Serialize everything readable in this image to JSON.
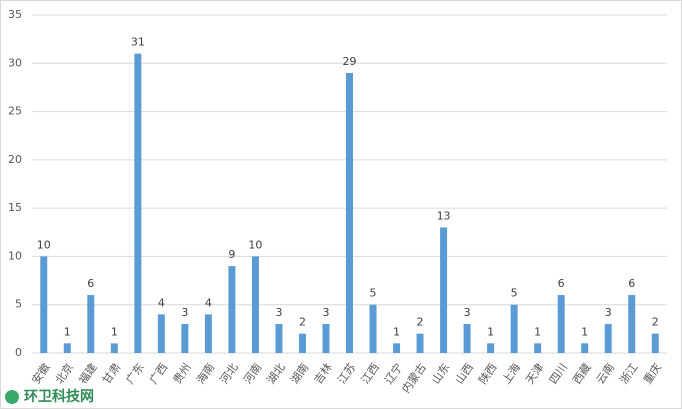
{
  "chart_data": {
    "type": "bar",
    "categories": [
      "安徽",
      "北京",
      "福建",
      "甘肃",
      "广东",
      "广西",
      "贵州",
      "海南",
      "河北",
      "河南",
      "湖北",
      "湖南",
      "吉林",
      "江苏",
      "江西",
      "辽宁",
      "内蒙古",
      "山东",
      "山西",
      "陕西",
      "上海",
      "天津",
      "四川",
      "西藏",
      "云南",
      "浙江",
      "重庆"
    ],
    "values": [
      10,
      1,
      6,
      1,
      31,
      4,
      3,
      4,
      9,
      10,
      3,
      2,
      3,
      29,
      5,
      1,
      2,
      13,
      3,
      1,
      5,
      1,
      6,
      1,
      3,
      6,
      2
    ],
    "color": "#5b9bd5",
    "ylim": [
      0,
      35
    ],
    "yticks": [
      0,
      5,
      10,
      15,
      20,
      25,
      30,
      35
    ],
    "grid": true,
    "watermark": "环卫科技网"
  }
}
